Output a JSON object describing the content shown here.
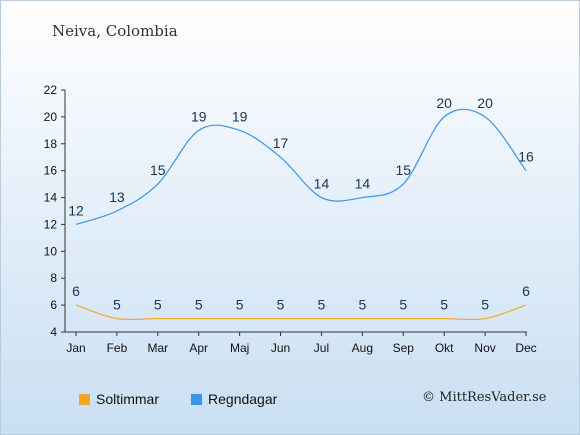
{
  "header": {
    "location": "Neiva, Colombia"
  },
  "credit": "© MittResVader.se",
  "colors": {
    "sun": "#f5a623",
    "rain": "#3a95e6",
    "axis": "#333333"
  },
  "chart_data": {
    "type": "line",
    "categories": [
      "Jan",
      "Feb",
      "Mar",
      "Apr",
      "Maj",
      "Jun",
      "Jul",
      "Aug",
      "Sep",
      "Okt",
      "Nov",
      "Dec"
    ],
    "ylim": [
      4,
      22
    ],
    "yticks": [
      4,
      6,
      8,
      10,
      12,
      14,
      16,
      18,
      20,
      22
    ],
    "grid": false,
    "legend_position": "bottom-left",
    "series": [
      {
        "name": "Soltimmar",
        "color": "#f5a623",
        "values": [
          6,
          5,
          5,
          5,
          5,
          5,
          5,
          5,
          5,
          5,
          5,
          6
        ]
      },
      {
        "name": "Regndagar",
        "color": "#3a95e6",
        "values": [
          12,
          13,
          15,
          19,
          19,
          17,
          14,
          14,
          15,
          20,
          20,
          16
        ]
      }
    ]
  }
}
